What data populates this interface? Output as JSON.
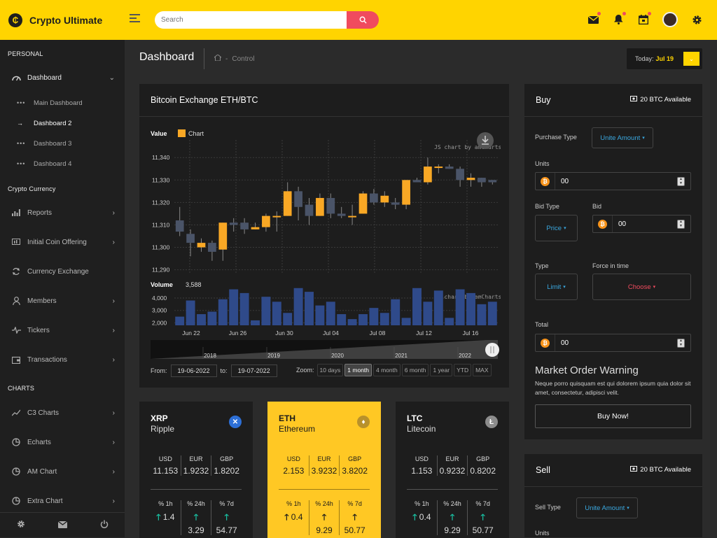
{
  "app": {
    "title": "Crypto Ultimate"
  },
  "search": {
    "placeholder": "Search"
  },
  "sidebar": {
    "sections": {
      "personal": "PERSONAL",
      "crypto": "Crypto Currency",
      "charts": "CHARTS"
    },
    "dashboard": "Dashboard",
    "sub_items": [
      "Main Dashboard",
      "Dashboard 2",
      "Dashboard 3",
      "Dashboard 4"
    ],
    "crypto_items": [
      "Reports",
      "Initial Coin Offering",
      "Currency Exchange",
      "Members",
      "Tickers",
      "Transactions"
    ],
    "chart_items": [
      "C3 Charts",
      "Echarts",
      "AM Chart",
      "Extra Chart"
    ]
  },
  "header": {
    "title": "Dashboard",
    "breadcrumb": "Control",
    "today_label": "Today:",
    "today_value": "Jul 19"
  },
  "exchange": {
    "title": "Bitcoin Exchange ETH/BTC",
    "legend_value": "Value",
    "legend_chart": "Chart",
    "watermark": "JS chart by amCharts",
    "volume_label": "Volume",
    "volume_value": "3,588",
    "from_label": "From:",
    "from_date": "19-06-2022",
    "to_label": "to:",
    "to_date": "19-07-2022",
    "zoom_label": "Zoom:",
    "zoom_options": [
      "10 days",
      "1 month",
      "4 month",
      "6 month",
      "1 year",
      "YTD",
      "MAX"
    ]
  },
  "chart_data": {
    "type": "candlestick",
    "title": "Bitcoin Exchange ETH/BTC",
    "price_ticks": [
      "11,340",
      "11,330",
      "11,320",
      "11,310",
      "11,300",
      "11,290"
    ],
    "volume_ticks": [
      "4,000",
      "3,000",
      "2,000"
    ],
    "x_ticks": [
      "Jun 22",
      "Jun 26",
      "Jun 30",
      "Jul 04",
      "Jul 08",
      "Jul 12",
      "Jul 16"
    ],
    "scroll_years": [
      "2018",
      "2019",
      "2020",
      "2021",
      "2022"
    ],
    "ylim": [
      11288,
      11346
    ],
    "volume_ylim": [
      1800,
      4900
    ],
    "candles": [
      {
        "o": 11312,
        "c": 11307,
        "h": 11318,
        "l": 11305,
        "v": 2500
      },
      {
        "o": 11306,
        "c": 11302,
        "h": 11308,
        "l": 11296,
        "v": 3800
      },
      {
        "o": 11300,
        "c": 11302,
        "h": 11304,
        "l": 11298,
        "v": 2700
      },
      {
        "o": 11302,
        "c": 11298,
        "h": 11303,
        "l": 11294,
        "v": 2900
      },
      {
        "o": 11299,
        "c": 11311,
        "h": 11311,
        "l": 11294,
        "v": 3900
      },
      {
        "o": 11311,
        "c": 11310,
        "h": 11313,
        "l": 11307,
        "v": 4700
      },
      {
        "o": 11311,
        "c": 11308,
        "h": 11313,
        "l": 11306,
        "v": 4400
      },
      {
        "o": 11308,
        "c": 11309,
        "h": 11311,
        "l": 11308,
        "v": 2200
      },
      {
        "o": 11309,
        "c": 11314,
        "h": 11315,
        "l": 11307,
        "v": 4100
      },
      {
        "o": 11314,
        "c": 11314,
        "h": 11316,
        "l": 11307,
        "v": 3700
      },
      {
        "o": 11314,
        "c": 11325,
        "h": 11329,
        "l": 11314,
        "v": 2800
      },
      {
        "o": 11325,
        "c": 11318,
        "h": 11327,
        "l": 11312,
        "v": 4800
      },
      {
        "o": 11319,
        "c": 11314,
        "h": 11322,
        "l": 11310,
        "v": 4500
      },
      {
        "o": 11314,
        "c": 11322,
        "h": 11324,
        "l": 11314,
        "v": 3400
      },
      {
        "o": 11322,
        "c": 11315,
        "h": 11324,
        "l": 11313,
        "v": 3700
      },
      {
        "o": 11315,
        "c": 11314,
        "h": 11318,
        "l": 11313,
        "v": 2700
      },
      {
        "o": 11314,
        "c": 11314,
        "h": 11319,
        "l": 11310,
        "v": 2300
      },
      {
        "o": 11315,
        "c": 11324,
        "h": 11325,
        "l": 11315,
        "v": 2700
      },
      {
        "o": 11324,
        "c": 11320,
        "h": 11326,
        "l": 11319,
        "v": 3200
      },
      {
        "o": 11320,
        "c": 11323,
        "h": 11325,
        "l": 11318,
        "v": 2800
      },
      {
        "o": 11320,
        "c": 11319,
        "h": 11322,
        "l": 11317,
        "v": 3900
      },
      {
        "o": 11319,
        "c": 11330,
        "h": 11330,
        "l": 11317,
        "v": 2400
      },
      {
        "o": 11330,
        "c": 11329,
        "h": 11331,
        "l": 11329,
        "v": 4800
      },
      {
        "o": 11329,
        "c": 11336,
        "h": 11340,
        "l": 11328,
        "v": 3700
      },
      {
        "o": 11336,
        "c": 11336,
        "h": 11337,
        "l": 11333,
        "v": 4600
      },
      {
        "o": 11336,
        "c": 11335,
        "h": 11337,
        "l": 11335,
        "v": 2400
      },
      {
        "o": 11335,
        "c": 11330,
        "h": 11336,
        "l": 11327,
        "v": 4700
      },
      {
        "o": 11330,
        "c": 11331,
        "h": 11333,
        "l": 11327,
        "v": 4400
      },
      {
        "o": 11331,
        "c": 11329,
        "h": 11331,
        "l": 11327,
        "v": 3500
      },
      {
        "o": 11330,
        "c": 11329,
        "h": 11330,
        "l": 11328,
        "v": 3700
      }
    ]
  },
  "buy": {
    "title": "Buy",
    "available": "20 BTC Available",
    "purchase_type_label": "Purchase Type",
    "purchase_type_value": "Unite Amount",
    "units_label": "Units",
    "units_value": "00",
    "bid_type_label": "Bid Type",
    "bid_type_value": "Price",
    "bid_label": "Bid",
    "bid_value": "00",
    "type_label": "Type",
    "type_value": "Limit",
    "force_label": "Force in time",
    "force_value": "Choose",
    "total_label": "Total",
    "total_value": "00",
    "warning_title": "Market Order Warning",
    "warning_text": "Neque porro quisquam est qui dolorem ipsum quia dolor sit amet, consectetur, adipisci velit.",
    "button": "Buy Now!"
  },
  "sell": {
    "title": "Sell",
    "available": "20 BTC Available",
    "sell_type_label": "Sell Type",
    "sell_type_value": "Unite Amount",
    "units_label": "Units"
  },
  "coins": [
    {
      "symbol": "XRP",
      "name": "Ripple",
      "prices": [
        {
          "cur": "USD",
          "val": "11.153"
        },
        {
          "cur": "EUR",
          "val": "1.9232"
        },
        {
          "cur": "GBP",
          "val": "1.8202"
        }
      ],
      "changes": [
        {
          "label": "% 1h",
          "val": "1.4"
        },
        {
          "label": "% 24h",
          "val": "3.29"
        },
        {
          "label": "% 7d",
          "val": "54.77"
        }
      ]
    },
    {
      "symbol": "ETH",
      "name": "Ethereum",
      "prices": [
        {
          "cur": "USD",
          "val": "2.153"
        },
        {
          "cur": "EUR",
          "val": "3.9232"
        },
        {
          "cur": "GBP",
          "val": "3.8202"
        }
      ],
      "changes": [
        {
          "label": "% 1h",
          "val": "0.4"
        },
        {
          "label": "% 24h",
          "val": "9.29"
        },
        {
          "label": "% 7d",
          "val": "50.77"
        }
      ]
    },
    {
      "symbol": "LTC",
      "name": "Litecoin",
      "prices": [
        {
          "cur": "USD",
          "val": "1.153"
        },
        {
          "cur": "EUR",
          "val": "0.9232"
        },
        {
          "cur": "GBP",
          "val": "0.8202"
        }
      ],
      "changes": [
        {
          "label": "% 1h",
          "val": "0.4"
        },
        {
          "label": "% 24h",
          "val": "9.29"
        },
        {
          "label": "% 7d",
          "val": "50.77"
        }
      ]
    }
  ],
  "colors": {
    "accent": "#ffd400",
    "up": "#f9a825",
    "down": "#4a5468",
    "volume": "#2f4a8a",
    "link": "#3aa8e0",
    "danger": "#f04b5e",
    "teal": "#19c3a4"
  }
}
